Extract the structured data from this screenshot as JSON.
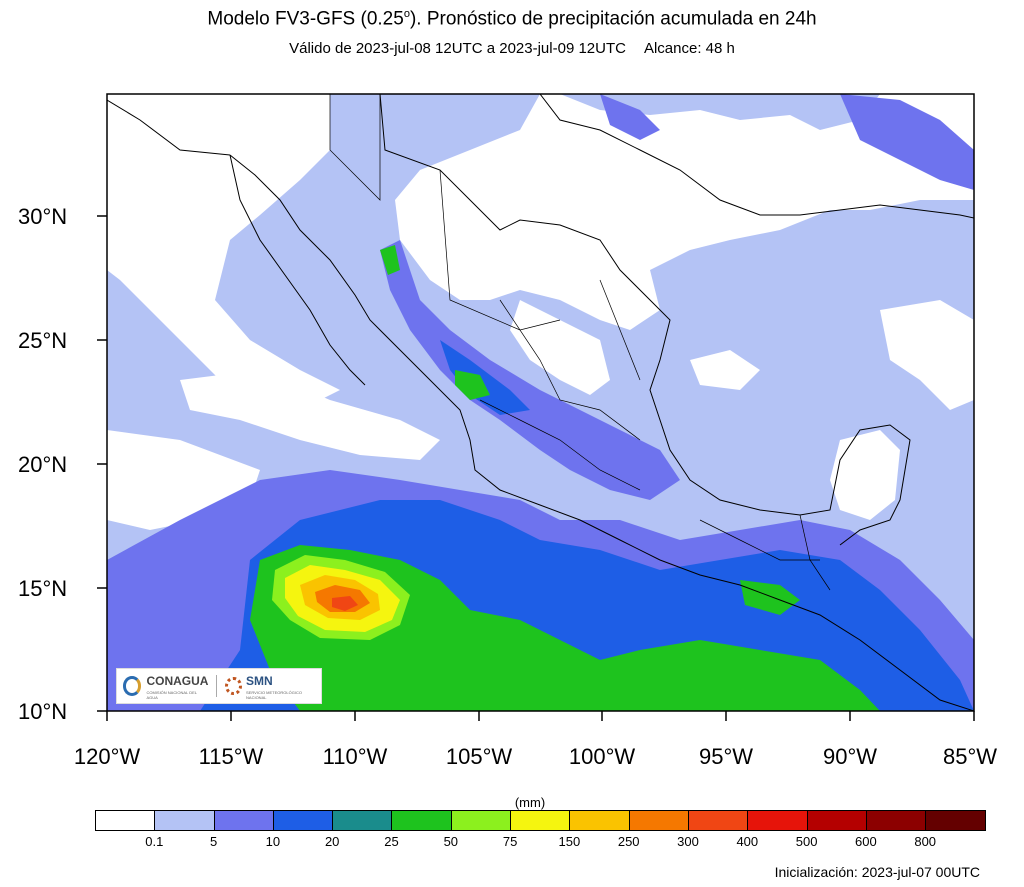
{
  "header": {
    "title_main": "Modelo FV3-GFS (0.25",
    "title_deg": "o",
    "title_rest": "). Pronóstico de precipitación acumulada en 24h",
    "validity": "Válido de 2023-jul-08 12UTC a 2023-jul-09 12UTC",
    "range": "Alcance: 48 h"
  },
  "map": {
    "lat_labels": [
      "30°N",
      "25°N",
      "20°N",
      "15°N",
      "10°N"
    ],
    "lon_labels": [
      "120°W",
      "115°W",
      "110°W",
      "105°W",
      "100°W",
      "95°W",
      "90°W",
      "85°W"
    ],
    "colors": {
      "land_bg": "#ffffff",
      "c_0_1": "#b4c3f5",
      "c_5": "#6e73ee",
      "c_10": "#1e5ee6",
      "c_20": "#1a8c8c",
      "c_25": "#1ec31e",
      "c_50": "#8cf01e",
      "c_75": "#f5f50f",
      "c_150": "#fac300",
      "c_250": "#f57800",
      "c_300": "#f04614",
      "c_400": "#e6140a",
      "c_500": "#b40000",
      "c_600": "#8c0000",
      "c_800": "#640000"
    }
  },
  "logo": {
    "conagua": "CONAGUA",
    "conagua_sub": "COMISIÓN NACIONAL DEL AGUA",
    "smn": "SMN",
    "smn_sub": "SERVICIO METEOROLÓGICO NACIONAL"
  },
  "colorbar": {
    "unit": "(mm)",
    "colors": [
      "#ffffff",
      "#b4c3f5",
      "#6e73ee",
      "#1e5ee6",
      "#1a8c8c",
      "#1ec31e",
      "#8cf01e",
      "#f5f50f",
      "#fac300",
      "#f57800",
      "#f04614",
      "#e6140a",
      "#b40000",
      "#8c0000",
      "#640000"
    ],
    "labels": [
      "0.1",
      "5",
      "10",
      "20",
      "25",
      "50",
      "75",
      "150",
      "250",
      "300",
      "400",
      "500",
      "600",
      "800"
    ]
  },
  "footer": {
    "init": "Inicialización: 2023-jul-07 00UTC"
  }
}
